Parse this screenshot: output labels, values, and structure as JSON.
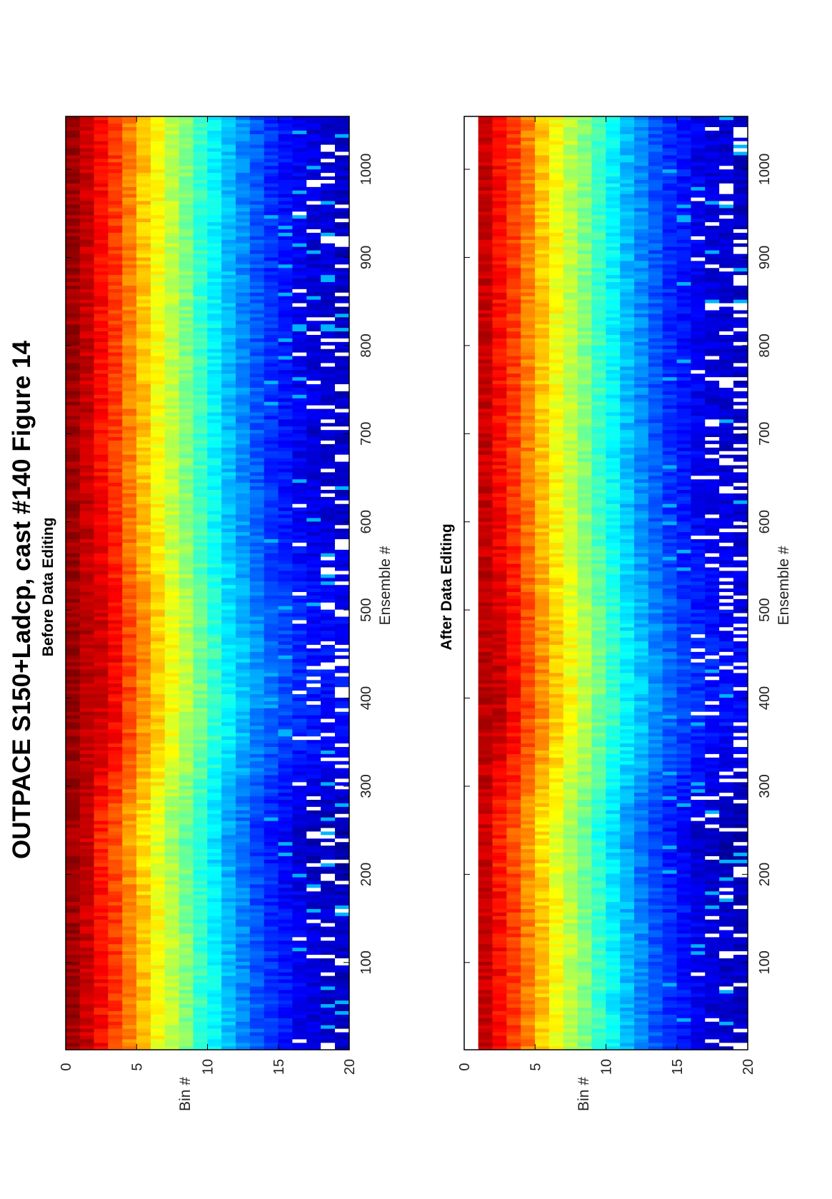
{
  "title": "OUTPACE S150+Ladcp, cast #140  Figure 14",
  "chart_data": [
    {
      "type": "heatmap",
      "subtitle": "Before Data Editing",
      "xlabel": "Ensemble #",
      "ylabel": "Bin #",
      "xlim": [
        1,
        1060
      ],
      "ylim": [
        0,
        20
      ],
      "xticks": [
        100,
        200,
        300,
        400,
        500,
        600,
        700,
        800,
        900,
        1000
      ],
      "yticks": [
        0,
        5,
        10,
        15,
        20
      ],
      "colormap": "jet",
      "blank_bins": [],
      "bins": 20,
      "ensembles": 1060,
      "approx_bin_level_profile": [
        0.97,
        0.93,
        0.87,
        0.82,
        0.75,
        0.68,
        0.62,
        0.56,
        0.5,
        0.43,
        0.37,
        0.31,
        0.26,
        0.21,
        0.17,
        0.14,
        0.11,
        0.09,
        0.08,
        0.07
      ],
      "missing_data_color": "#ffffff"
    },
    {
      "type": "heatmap",
      "subtitle": "After Data Editing",
      "xlabel": "Ensemble #",
      "ylabel": "Bin #",
      "xlim": [
        1,
        1060
      ],
      "ylim": [
        0,
        20
      ],
      "xticks": [
        100,
        200,
        300,
        400,
        500,
        600,
        700,
        800,
        900,
        1000
      ],
      "yticks": [
        0,
        5,
        10,
        15,
        20
      ],
      "colormap": "jet",
      "blank_bins": [
        1
      ],
      "bins": 20,
      "ensembles": 1060,
      "approx_bin_level_profile": [
        0.97,
        0.93,
        0.87,
        0.82,
        0.75,
        0.68,
        0.62,
        0.56,
        0.5,
        0.43,
        0.37,
        0.31,
        0.26,
        0.21,
        0.17,
        0.14,
        0.11,
        0.09,
        0.08,
        0.07
      ],
      "missing_data_color": "#ffffff"
    }
  ]
}
